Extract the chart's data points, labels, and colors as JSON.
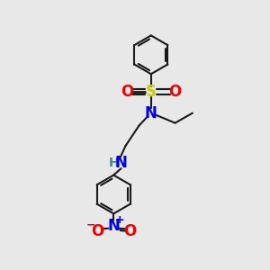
{
  "bg_color": "#e8e8e8",
  "bond_color": "#1a1a1a",
  "N_color": "#0000ee",
  "O_color": "#ee0000",
  "S_color": "#cccc00",
  "NH_color": "#4a8888",
  "lw": 1.5,
  "xlim": [
    0,
    10
  ],
  "ylim": [
    0,
    10
  ]
}
